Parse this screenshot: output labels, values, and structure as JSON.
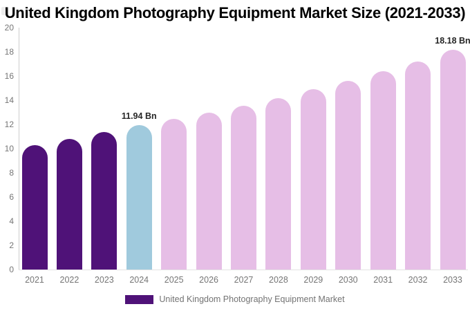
{
  "title": "United Kingdom Photography Equipment Market Size (2021-2033)",
  "legend": {
    "label": "United Kingdom Photography Equipment Market",
    "swatch_color": "#4F1278"
  },
  "colors": {
    "historical_bar": "#4F1278",
    "current_bar": "#A0CADD",
    "forecast_bar": "#E6BEE6",
    "axis_line": "#cccccc",
    "baseline": "#e3e3e3",
    "tick_text": "#757575",
    "annotation_text": "#262626",
    "title_text": "#000000",
    "legend_text": "#737373"
  },
  "chart_data": {
    "type": "bar",
    "title": "United Kingdom Photography Equipment Market Size (2021-2033)",
    "xlabel": "",
    "ylabel": "",
    "unit": "Bn",
    "categories": [
      "2021",
      "2022",
      "2023",
      "2024",
      "2025",
      "2026",
      "2027",
      "2028",
      "2029",
      "2030",
      "2031",
      "2032",
      "2033"
    ],
    "values": [
      10.3,
      10.8,
      11.35,
      11.94,
      12.45,
      12.95,
      13.55,
      14.2,
      14.9,
      15.6,
      16.4,
      17.2,
      18.18
    ],
    "segments": [
      "historical",
      "historical",
      "historical",
      "current",
      "forecast",
      "forecast",
      "forecast",
      "forecast",
      "forecast",
      "forecast",
      "forecast",
      "forecast",
      "forecast"
    ],
    "ylim": [
      0,
      20
    ],
    "y_ticks": [
      0,
      2,
      4,
      6,
      8,
      10,
      12,
      14,
      16,
      18,
      20
    ],
    "grid": false,
    "legend_position": "bottom",
    "legend_entries": [
      "United Kingdom Photography Equipment Market"
    ],
    "annotations": [
      {
        "category": "2024",
        "text": "11.94 Bn"
      },
      {
        "category": "2033",
        "text": "18.18 Bn"
      }
    ]
  }
}
